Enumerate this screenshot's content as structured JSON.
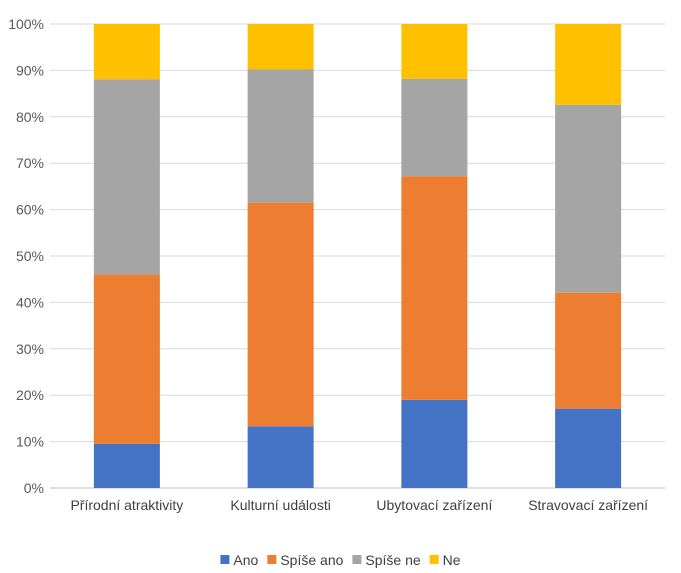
{
  "chart_data": {
    "type": "bar",
    "stacked": true,
    "percent_stacked": true,
    "categories": [
      "Přírodní atraktivity",
      "Kulturní události",
      "Ubytovací zařízení",
      "Stravovací zařízení"
    ],
    "series": [
      {
        "name": "Ano",
        "color": "#4472C4",
        "values": [
          9.5,
          13.3,
          19.0,
          17.1
        ]
      },
      {
        "name": "Spíše ano",
        "color": "#ED7D31",
        "values": [
          36.5,
          48.2,
          48.2,
          25.0
        ]
      },
      {
        "name": "Spíše ne",
        "color": "#A5A5A5",
        "values": [
          42.1,
          28.7,
          21.0,
          40.5
        ]
      },
      {
        "name": "Ne",
        "color": "#FFC000",
        "values": [
          11.9,
          9.8,
          11.8,
          17.4
        ]
      }
    ],
    "y_ticks": [
      "0%",
      "10%",
      "20%",
      "30%",
      "40%",
      "50%",
      "60%",
      "70%",
      "80%",
      "90%",
      "100%"
    ],
    "ylim": [
      0,
      100
    ],
    "grid": true,
    "legend": "bottom"
  }
}
